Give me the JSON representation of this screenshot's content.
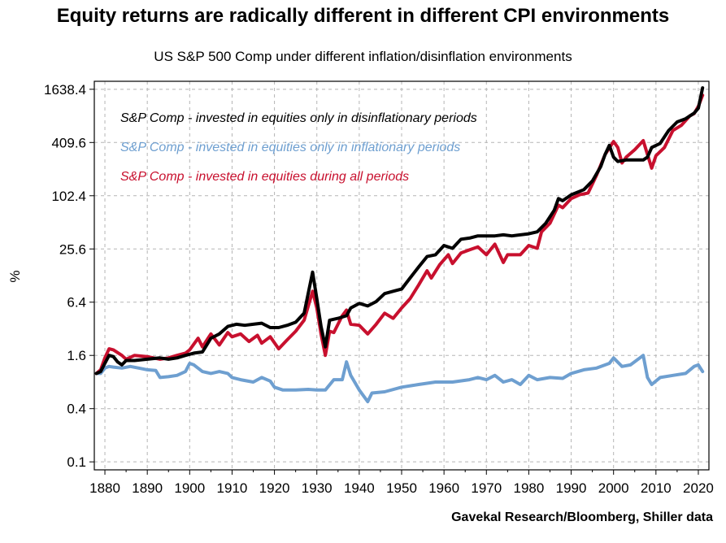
{
  "title": "Equity returns are radically different in different CPI environments",
  "subtitle": "US S&P 500 Comp under different inflation/disinflation environments",
  "source": "Gavekal Research/Bloomberg, Shiller data",
  "chart_data": {
    "type": "line",
    "ylabel": "%",
    "xlabel": "",
    "yscale": "log2",
    "ylim": [
      0.1,
      1638.4
    ],
    "xlim": [
      1877.5,
      2022.5
    ],
    "yticks": [
      0.1,
      0.4,
      1.6,
      6.4,
      25.6,
      102.4,
      409.6,
      1638.4
    ],
    "ytick_labels": [
      "0.1",
      "0.4",
      "1.6",
      "6.4",
      "25.6",
      "102.4",
      "409.6",
      "1638.4"
    ],
    "xticks": [
      1880,
      1890,
      1900,
      1910,
      1920,
      1930,
      1940,
      1950,
      1960,
      1970,
      1980,
      1990,
      2000,
      2010,
      2020
    ],
    "xtick_labels": [
      "1880",
      "1890",
      "1900",
      "1910",
      "1920",
      "1930",
      "1940",
      "1950",
      "1960",
      "1970",
      "1980",
      "1990",
      "2000",
      "2010",
      "2020"
    ],
    "grid": true,
    "legend_position": "top-left",
    "series": [
      {
        "name": "S&P Comp - invested in equities only in inflationary periods",
        "color": "#6e9fd0",
        "points": [
          [
            1878,
            1.0
          ],
          [
            1879,
            1.0
          ],
          [
            1880,
            1.15
          ],
          [
            1881,
            1.2
          ],
          [
            1882,
            1.18
          ],
          [
            1884,
            1.15
          ],
          [
            1886,
            1.2
          ],
          [
            1888,
            1.15
          ],
          [
            1890,
            1.1
          ],
          [
            1892,
            1.08
          ],
          [
            1893,
            0.9
          ],
          [
            1895,
            0.92
          ],
          [
            1897,
            0.95
          ],
          [
            1899,
            1.05
          ],
          [
            1900,
            1.3
          ],
          [
            1901,
            1.25
          ],
          [
            1903,
            1.05
          ],
          [
            1905,
            1.0
          ],
          [
            1907,
            1.05
          ],
          [
            1909,
            1.0
          ],
          [
            1910,
            0.9
          ],
          [
            1912,
            0.85
          ],
          [
            1915,
            0.8
          ],
          [
            1917,
            0.9
          ],
          [
            1919,
            0.82
          ],
          [
            1920,
            0.7
          ],
          [
            1922,
            0.65
          ],
          [
            1925,
            0.65
          ],
          [
            1928,
            0.66
          ],
          [
            1930,
            0.65
          ],
          [
            1932,
            0.65
          ],
          [
            1934,
            0.85
          ],
          [
            1936,
            0.85
          ],
          [
            1937,
            1.35
          ],
          [
            1938,
            0.95
          ],
          [
            1940,
            0.65
          ],
          [
            1942,
            0.48
          ],
          [
            1943,
            0.6
          ],
          [
            1946,
            0.62
          ],
          [
            1950,
            0.7
          ],
          [
            1954,
            0.75
          ],
          [
            1958,
            0.8
          ],
          [
            1962,
            0.8
          ],
          [
            1966,
            0.85
          ],
          [
            1968,
            0.9
          ],
          [
            1970,
            0.85
          ],
          [
            1972,
            0.95
          ],
          [
            1974,
            0.8
          ],
          [
            1976,
            0.85
          ],
          [
            1978,
            0.75
          ],
          [
            1980,
            0.95
          ],
          [
            1982,
            0.85
          ],
          [
            1985,
            0.9
          ],
          [
            1988,
            0.88
          ],
          [
            1990,
            1.0
          ],
          [
            1993,
            1.1
          ],
          [
            1996,
            1.15
          ],
          [
            1999,
            1.3
          ],
          [
            2000,
            1.5
          ],
          [
            2002,
            1.2
          ],
          [
            2004,
            1.25
          ],
          [
            2007,
            1.6
          ],
          [
            2008,
            0.9
          ],
          [
            2009,
            0.75
          ],
          [
            2011,
            0.9
          ],
          [
            2014,
            0.95
          ],
          [
            2017,
            1.0
          ],
          [
            2019,
            1.2
          ],
          [
            2020,
            1.25
          ],
          [
            2021,
            1.05
          ]
        ]
      },
      {
        "name": "S&P Comp - invested in equities during all periods",
        "color": "#c8102e",
        "points": [
          [
            1878,
            1.0
          ],
          [
            1879,
            1.1
          ],
          [
            1880,
            1.5
          ],
          [
            1881,
            1.9
          ],
          [
            1882,
            1.85
          ],
          [
            1884,
            1.6
          ],
          [
            1885,
            1.45
          ],
          [
            1887,
            1.6
          ],
          [
            1890,
            1.55
          ],
          [
            1893,
            1.45
          ],
          [
            1895,
            1.5
          ],
          [
            1897,
            1.6
          ],
          [
            1899,
            1.7
          ],
          [
            1900,
            1.85
          ],
          [
            1902,
            2.5
          ],
          [
            1903,
            2.0
          ],
          [
            1905,
            2.8
          ],
          [
            1907,
            2.1
          ],
          [
            1909,
            2.9
          ],
          [
            1910,
            2.6
          ],
          [
            1912,
            2.8
          ],
          [
            1914,
            2.3
          ],
          [
            1916,
            2.7
          ],
          [
            1917,
            2.2
          ],
          [
            1919,
            2.6
          ],
          [
            1921,
            1.9
          ],
          [
            1923,
            2.4
          ],
          [
            1925,
            3.0
          ],
          [
            1927,
            4.0
          ],
          [
            1929,
            8.5
          ],
          [
            1930,
            5.5
          ],
          [
            1931,
            2.8
          ],
          [
            1932,
            1.6
          ],
          [
            1933,
            3.0
          ],
          [
            1934,
            2.9
          ],
          [
            1936,
            4.5
          ],
          [
            1937,
            5.2
          ],
          [
            1938,
            3.6
          ],
          [
            1940,
            3.5
          ],
          [
            1942,
            2.8
          ],
          [
            1944,
            3.6
          ],
          [
            1946,
            4.8
          ],
          [
            1948,
            4.2
          ],
          [
            1950,
            5.5
          ],
          [
            1952,
            7.0
          ],
          [
            1954,
            10.0
          ],
          [
            1956,
            14.5
          ],
          [
            1957,
            12.0
          ],
          [
            1959,
            17.0
          ],
          [
            1961,
            22.0
          ],
          [
            1962,
            17.5
          ],
          [
            1964,
            23.0
          ],
          [
            1966,
            25.0
          ],
          [
            1968,
            27.0
          ],
          [
            1970,
            22.0
          ],
          [
            1972,
            29.0
          ],
          [
            1974,
            18.0
          ],
          [
            1975,
            22.0
          ],
          [
            1978,
            22.0
          ],
          [
            1980,
            28.0
          ],
          [
            1982,
            26.0
          ],
          [
            1983,
            40.0
          ],
          [
            1985,
            50.0
          ],
          [
            1987,
            80.0
          ],
          [
            1988,
            75.0
          ],
          [
            1990,
            95.0
          ],
          [
            1992,
            105.0
          ],
          [
            1994,
            110.0
          ],
          [
            1996,
            175.0
          ],
          [
            1998,
            300.0
          ],
          [
            2000,
            420.0
          ],
          [
            2001,
            360.0
          ],
          [
            2002,
            240.0
          ],
          [
            2003,
            280.0
          ],
          [
            2005,
            340.0
          ],
          [
            2007,
            430.0
          ],
          [
            2008,
            300.0
          ],
          [
            2009,
            210.0
          ],
          [
            2010,
            290.0
          ],
          [
            2012,
            360.0
          ],
          [
            2014,
            560.0
          ],
          [
            2016,
            640.0
          ],
          [
            2018,
            820.0
          ],
          [
            2019,
            870.0
          ],
          [
            2020,
            1050.0
          ],
          [
            2021,
            1400.0
          ]
        ]
      },
      {
        "name": "S&P Comp - invested in equities only in disinflationary periods",
        "color": "#000000",
        "points": [
          [
            1878,
            1.0
          ],
          [
            1879,
            1.05
          ],
          [
            1880,
            1.3
          ],
          [
            1881,
            1.6
          ],
          [
            1882,
            1.55
          ],
          [
            1883,
            1.35
          ],
          [
            1884,
            1.25
          ],
          [
            1885,
            1.4
          ],
          [
            1887,
            1.4
          ],
          [
            1890,
            1.45
          ],
          [
            1893,
            1.5
          ],
          [
            1895,
            1.45
          ],
          [
            1897,
            1.5
          ],
          [
            1899,
            1.6
          ],
          [
            1901,
            1.7
          ],
          [
            1903,
            1.75
          ],
          [
            1905,
            2.5
          ],
          [
            1907,
            2.8
          ],
          [
            1909,
            3.4
          ],
          [
            1911,
            3.6
          ],
          [
            1913,
            3.5
          ],
          [
            1915,
            3.6
          ],
          [
            1917,
            3.7
          ],
          [
            1919,
            3.3
          ],
          [
            1921,
            3.3
          ],
          [
            1923,
            3.5
          ],
          [
            1925,
            3.8
          ],
          [
            1927,
            4.8
          ],
          [
            1929,
            14.0
          ],
          [
            1930,
            7.0
          ],
          [
            1931,
            3.4
          ],
          [
            1932,
            2.0
          ],
          [
            1933,
            4.0
          ],
          [
            1935,
            4.2
          ],
          [
            1937,
            4.5
          ],
          [
            1938,
            5.5
          ],
          [
            1940,
            6.2
          ],
          [
            1942,
            5.8
          ],
          [
            1944,
            6.5
          ],
          [
            1946,
            8.0
          ],
          [
            1948,
            8.5
          ],
          [
            1950,
            9.0
          ],
          [
            1952,
            12.0
          ],
          [
            1954,
            16.0
          ],
          [
            1956,
            21.0
          ],
          [
            1958,
            22.0
          ],
          [
            1960,
            28.0
          ],
          [
            1962,
            26.0
          ],
          [
            1964,
            33.0
          ],
          [
            1966,
            34.0
          ],
          [
            1968,
            36.0
          ],
          [
            1972,
            36.0
          ],
          [
            1974,
            37.0
          ],
          [
            1976,
            36.0
          ],
          [
            1980,
            38.0
          ],
          [
            1982,
            40.0
          ],
          [
            1984,
            50.0
          ],
          [
            1986,
            70.0
          ],
          [
            1987,
            95.0
          ],
          [
            1988,
            90.0
          ],
          [
            1990,
            105.0
          ],
          [
            1993,
            120.0
          ],
          [
            1995,
            150.0
          ],
          [
            1997,
            220.0
          ],
          [
            1998,
            300.0
          ],
          [
            1999,
            380.0
          ],
          [
            2000,
            280.0
          ],
          [
            2001,
            250.0
          ],
          [
            2003,
            260.0
          ],
          [
            2007,
            260.0
          ],
          [
            2008,
            280.0
          ],
          [
            2009,
            360.0
          ],
          [
            2011,
            400.0
          ],
          [
            2013,
            560.0
          ],
          [
            2015,
            700.0
          ],
          [
            2017,
            760.0
          ],
          [
            2019,
            880.0
          ],
          [
            2020,
            1000.0
          ],
          [
            2021,
            1700.0
          ]
        ]
      }
    ]
  }
}
